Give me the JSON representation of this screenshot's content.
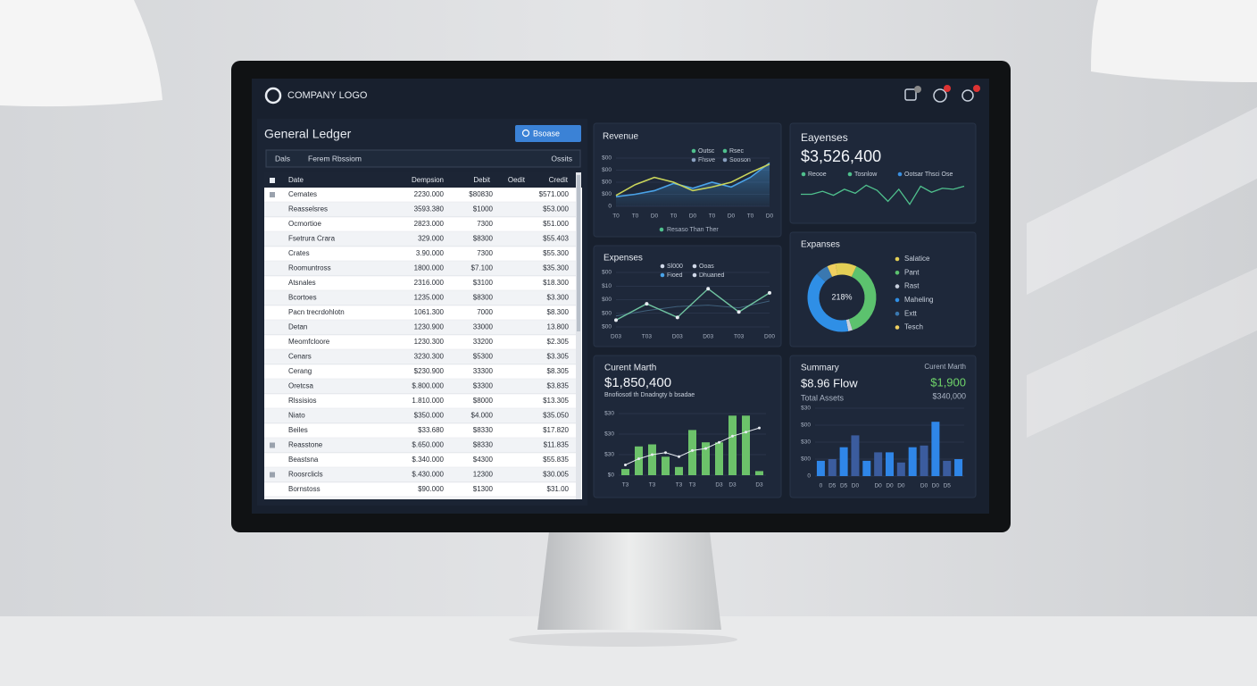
{
  "header": {
    "logo": "COMPANY LOGO"
  },
  "ledger": {
    "title": "General Ledger",
    "button": "Bsoase",
    "filters": [
      "Dals",
      "Ferem Rbssiom",
      "Ossits"
    ],
    "table": {
      "columns": [
        "Date",
        "Dempsion",
        "Debit",
        "Oedit",
        "Credit"
      ],
      "rows": [
        [
          "Cemates",
          "2230.000",
          "$80830",
          "$571.000"
        ],
        [
          "Reasselsres",
          "3593.380",
          "$1000",
          "$53.000"
        ],
        [
          "Ocmortioe",
          "2823.000",
          "7300",
          "$51.000"
        ],
        [
          "Fsetrura Crara",
          "329.000",
          "$8300",
          "$55.403"
        ],
        [
          "Crates",
          "3.90.000",
          "7300",
          "$55.300"
        ],
        [
          "Roomuntross",
          "1800.000",
          "$7.100",
          "$35.300"
        ],
        [
          "Atsnales",
          "2316.000",
          "$3100",
          "$18.300"
        ],
        [
          "Bcortoes",
          "1235.000",
          "$8300",
          "$3.300"
        ],
        [
          "Pacn trecrdohlotn",
          "1061.300",
          "7000",
          "$8.300"
        ],
        [
          "Detan",
          "1230.900",
          "33000",
          "13.800"
        ],
        [
          "Meomfcloore",
          "1230.300",
          "33200",
          "$2.305"
        ],
        [
          "Cenars",
          "3230.300",
          "$5300",
          "$3.305"
        ],
        [
          "Cerang",
          "$230.900",
          "33300",
          "$8.305"
        ],
        [
          "Oretcsa",
          "$.800.000",
          "$3300",
          "$3.835"
        ],
        [
          "Rlssisios",
          "1.810.000",
          "$8000",
          "$13.305"
        ],
        [
          "Niato",
          "$350.000",
          "$4.000",
          "$35.050"
        ],
        [
          "Beiles",
          "$33.680",
          "$8330",
          "$17.820"
        ],
        [
          "Reasstone",
          "$.650.000",
          "$8330",
          "$11.835"
        ],
        [
          "Beastsna",
          "$.340.000",
          "$4300",
          "$55.835"
        ],
        [
          "Roosrclicls",
          "$.430.000",
          "12300",
          "$30.005"
        ],
        [
          "Bornstoss",
          "$90.000",
          "$1300",
          "$31.00"
        ]
      ]
    }
  },
  "revenue": {
    "type": "line",
    "title": "Revenue",
    "legend": [
      {
        "name": "Outsc",
        "color": "#4fc08d"
      },
      {
        "name": "Rsec",
        "color": "#4fc08d"
      },
      {
        "name": "Fhsve",
        "color": "#8aa0c0"
      },
      {
        "name": "Sooson",
        "color": "#8aa0c0"
      }
    ],
    "ylim": [
      0,
      4
    ],
    "yticks": [
      0,
      {
        "value": 1,
        "label": "$00"
      },
      {
        "value": 2,
        "label": "$00"
      },
      {
        "value": 3,
        "label": "$00"
      },
      {
        "value": 4,
        "label": "$00"
      }
    ],
    "categories": [
      "T0",
      "T0",
      "D0",
      "T0",
      "D0",
      "T0",
      "D0",
      "T0",
      "D0"
    ],
    "series": [
      {
        "color": "#4aa3e8",
        "values": [
          0.8,
          1.0,
          1.3,
          1.9,
          1.5,
          2.0,
          1.6,
          2.4,
          3.6
        ]
      },
      {
        "color": "#c9d45a",
        "values": [
          0.9,
          1.8,
          2.4,
          2.0,
          1.3,
          1.6,
          2.0,
          2.8,
          3.5
        ]
      }
    ],
    "footnote": "Resaso Than Ther"
  },
  "expenses_total": {
    "type": "line",
    "title": "Eayenses",
    "value": "$3,526,400",
    "legend": [
      {
        "name": "Reooe",
        "color": "#4fc08d"
      },
      {
        "name": "Tosnlow",
        "color": "#4fc08d"
      },
      {
        "name": "Ootsar Thsci Ose",
        "color": "#3b8fe0"
      }
    ],
    "ylim": [
      0,
      4
    ],
    "series": [
      {
        "color": "#4fc08d",
        "values": [
          2.0,
          2.0,
          2.3,
          1.9,
          2.5,
          2.1,
          2.9,
          2.4,
          1.3,
          2.5,
          1.0,
          2.8,
          2.2,
          2.6,
          2.5,
          2.8
        ]
      }
    ]
  },
  "expenses": {
    "type": "line",
    "title": "Expenses",
    "legend": [
      {
        "name": "Sl000",
        "color": "#d0d8e8"
      },
      {
        "name": "Ooas",
        "color": "#d0d8e8"
      },
      {
        "name": "Fioed",
        "color": "#4aa3e8"
      },
      {
        "name": "Dhuaned",
        "color": "#d0d8e8"
      }
    ],
    "ylim": [
      0,
      4
    ],
    "yticks": [
      {
        "value": 0,
        "label": "$00"
      },
      {
        "value": 1,
        "label": "$00"
      },
      {
        "value": 2,
        "label": "$00"
      },
      {
        "value": 3,
        "label": "$10"
      },
      {
        "value": 4,
        "label": "$00"
      }
    ],
    "categories": [
      "D03",
      "T03",
      "D03",
      "D03",
      "T03",
      "D00"
    ],
    "series": [
      {
        "color": "#6fc3a0",
        "values": [
          0.5,
          1.7,
          0.7,
          2.8,
          1.1,
          2.5
        ]
      },
      {
        "color": "#3f5f7a",
        "values": [
          0.8,
          1.2,
          1.5,
          1.6,
          1.4,
          1.9
        ]
      }
    ]
  },
  "expense_split": {
    "type": "pie",
    "title": "Expanses",
    "center": "218%",
    "categories": [
      "Salatice",
      "Pant",
      "Rast",
      "Maheling",
      "Extt",
      "Tesch"
    ],
    "values": [
      10,
      38,
      2,
      40,
      6,
      4
    ],
    "colors": [
      "#e3cf55",
      "#5cc26e",
      "#c7cfdd",
      "#2f8fe6",
      "#3a78b0",
      "#f0d060"
    ]
  },
  "current_month": {
    "type": "bar",
    "title": "Curent Marth",
    "value": "$1,850,400",
    "subtitle": "Bnofiosotl  th Dnadngty b bsadae",
    "ylim": [
      0,
      3
    ],
    "yticks": [
      {
        "value": 0,
        "label": "$0"
      },
      {
        "value": 1,
        "label": "$30"
      },
      {
        "value": 2,
        "label": "$30"
      },
      {
        "value": 3,
        "label": "$30"
      }
    ],
    "categories": [
      "T3",
      null,
      "T3",
      null,
      "T3",
      "T3",
      null,
      "D3",
      "D3",
      null,
      "D3"
    ],
    "values": [
      0.3,
      1.4,
      1.5,
      0.9,
      0.4,
      2.2,
      1.6,
      1.6,
      2.9,
      2.9,
      0.2
    ],
    "trend": [
      0.5,
      0.8,
      1.0,
      1.1,
      0.9,
      1.2,
      1.3,
      1.6,
      1.9,
      2.1,
      2.3
    ],
    "color": "#6cc26a"
  },
  "summary": {
    "type": "bar",
    "title": "Summary",
    "period": "Curent Marth",
    "flow": "$8.96 Flow",
    "flow_value": "$1,900",
    "assets_label": "Total Assets",
    "assets_value": "$340,000",
    "ylim": [
      0,
      4
    ],
    "yticks": [
      0,
      {
        "value": 1,
        "label": "$00"
      },
      {
        "value": 2,
        "label": "$30"
      },
      {
        "value": 3,
        "label": "$00"
      },
      {
        "value": 4,
        "label": "$30"
      }
    ],
    "categories": [
      "0",
      "D5",
      "D5",
      "D0",
      null,
      "D0",
      "D0",
      "D0",
      null,
      "D0",
      "D0",
      "D5",
      null
    ],
    "values": [
      0.9,
      1.0,
      1.7,
      2.4,
      0.9,
      1.4,
      1.4,
      0.8,
      1.7,
      1.8,
      3.2,
      0.9,
      1.0
    ],
    "colors": [
      "#2f86e8",
      "#3b5c9e"
    ]
  }
}
